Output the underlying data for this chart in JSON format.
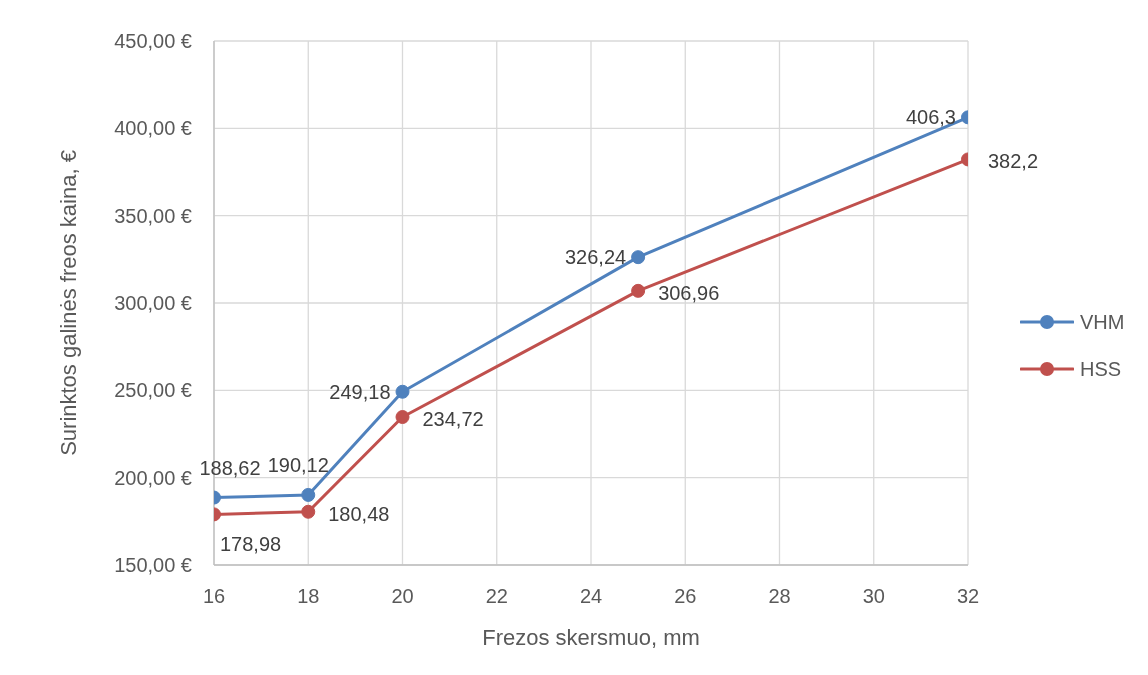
{
  "chart_data": {
    "type": "line",
    "xlabel": "Frezos skersmuo, mm",
    "ylabel": "Surinktos galinės freos kaina,  €",
    "x": [
      16,
      18,
      20,
      25,
      32
    ],
    "series": [
      {
        "name": "VHM",
        "color": "#4f81bd",
        "values": [
          188.62,
          190.12,
          249.18,
          326.24,
          406.3
        ],
        "value_labels": [
          "188,62",
          "190,12",
          "249,18",
          "326,24",
          "406,3"
        ]
      },
      {
        "name": "HSS",
        "color": "#c0504d",
        "values": [
          178.98,
          180.48,
          234.72,
          306.96,
          382.2
        ],
        "value_labels": [
          "178,98",
          "180,48",
          "234,72",
          "306,96",
          "382,2"
        ]
      }
    ],
    "xlim": [
      16,
      32
    ],
    "xticks": [
      16,
      18,
      20,
      22,
      24,
      26,
      28,
      30,
      32
    ],
    "ylim": [
      150,
      450
    ],
    "yticks": [
      {
        "value": 150,
        "label": "150,00 €"
      },
      {
        "value": 200,
        "label": "200,00 €"
      },
      {
        "value": 250,
        "label": "250,00 €"
      },
      {
        "value": 300,
        "label": "300,00 €"
      },
      {
        "value": 350,
        "label": "350,00 €"
      },
      {
        "value": 400,
        "label": "400,00 €"
      },
      {
        "value": 450,
        "label": "450,00 €"
      }
    ],
    "grid": true,
    "legend": "right",
    "marker": "circle",
    "line_style": "solid"
  }
}
